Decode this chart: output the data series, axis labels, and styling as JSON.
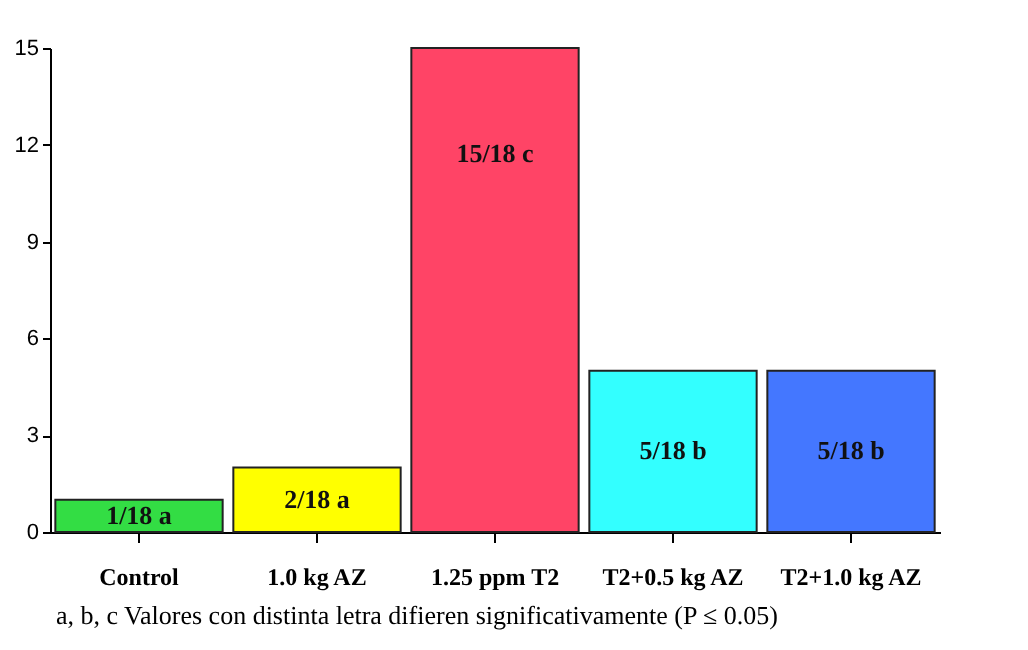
{
  "chart_data": {
    "type": "bar",
    "categories": [
      "Control",
      "1.0 kg AZ",
      "1.25 ppm T2",
      "T2+0.5 kg AZ",
      "T2+1.0 kg AZ"
    ],
    "values": [
      1,
      2,
      15,
      5,
      5
    ],
    "colors": [
      "#33dd44",
      "#ffff00",
      "#ff4466",
      "#33ffff",
      "#4477ff"
    ],
    "value_labels": [
      "1/18 a",
      "2/18 a",
      "15/18 c",
      "5/18 b",
      "5/18 b"
    ],
    "ylim": [
      0,
      15
    ],
    "yticks": [
      0,
      3,
      6,
      9,
      12,
      15
    ],
    "grid": false,
    "annotations": [
      "a, b, c  Valores con distinta letra difieren significativamente (P ≤ 0.05)"
    ]
  }
}
